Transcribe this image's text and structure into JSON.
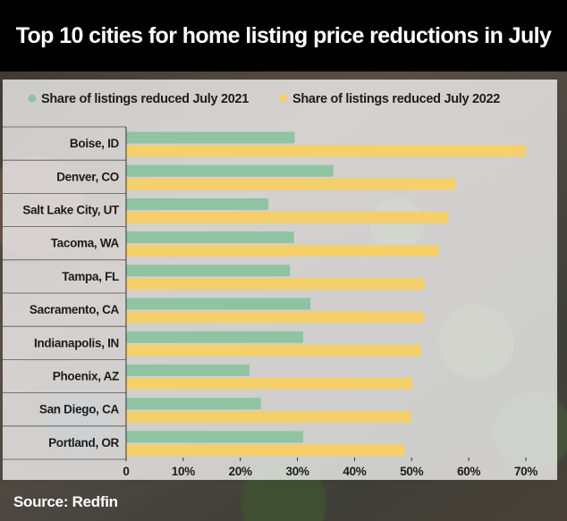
{
  "title": "Top 10 cities for home listing price reductions in July",
  "source": "Source: Redfin",
  "colors": {
    "series_2021": "#8fc3a1",
    "series_2022": "#f4cf6a"
  },
  "chart_data": {
    "type": "bar",
    "orientation": "horizontal",
    "categories": [
      "Boise, ID",
      "Denver, CO",
      "Salt Lake City, UT",
      "Tacoma, WA",
      "Tampa, FL",
      "Sacramento, CA",
      "Indianapolis, IN",
      "Phoenix, AZ",
      "San Diego, CA",
      "Portland, OR"
    ],
    "series": [
      {
        "name": "Share of listings reduced July 2021",
        "color": "#8fc3a1",
        "values": [
          29.5,
          36.3,
          24.9,
          29.4,
          28.7,
          32.3,
          31.0,
          21.6,
          23.6,
          31.0
        ]
      },
      {
        "name": "Share of listings reduced July 2022",
        "color": "#f4cf6a",
        "values": [
          70.0,
          57.8,
          56.5,
          54.8,
          52.3,
          52.2,
          51.7,
          50.2,
          50.0,
          48.8
        ]
      }
    ],
    "x_ticks": [
      0,
      10,
      20,
      30,
      40,
      50,
      60,
      70
    ],
    "x_tick_labels": [
      "0",
      "10%",
      "20%",
      "30%",
      "40%",
      "50%",
      "60%",
      "70%"
    ],
    "xlim": [
      0,
      70
    ],
    "legend_position": "top",
    "grid": false,
    "title": "Top 10 cities for home listing price reductions in July",
    "xlabel": "",
    "ylabel": ""
  }
}
